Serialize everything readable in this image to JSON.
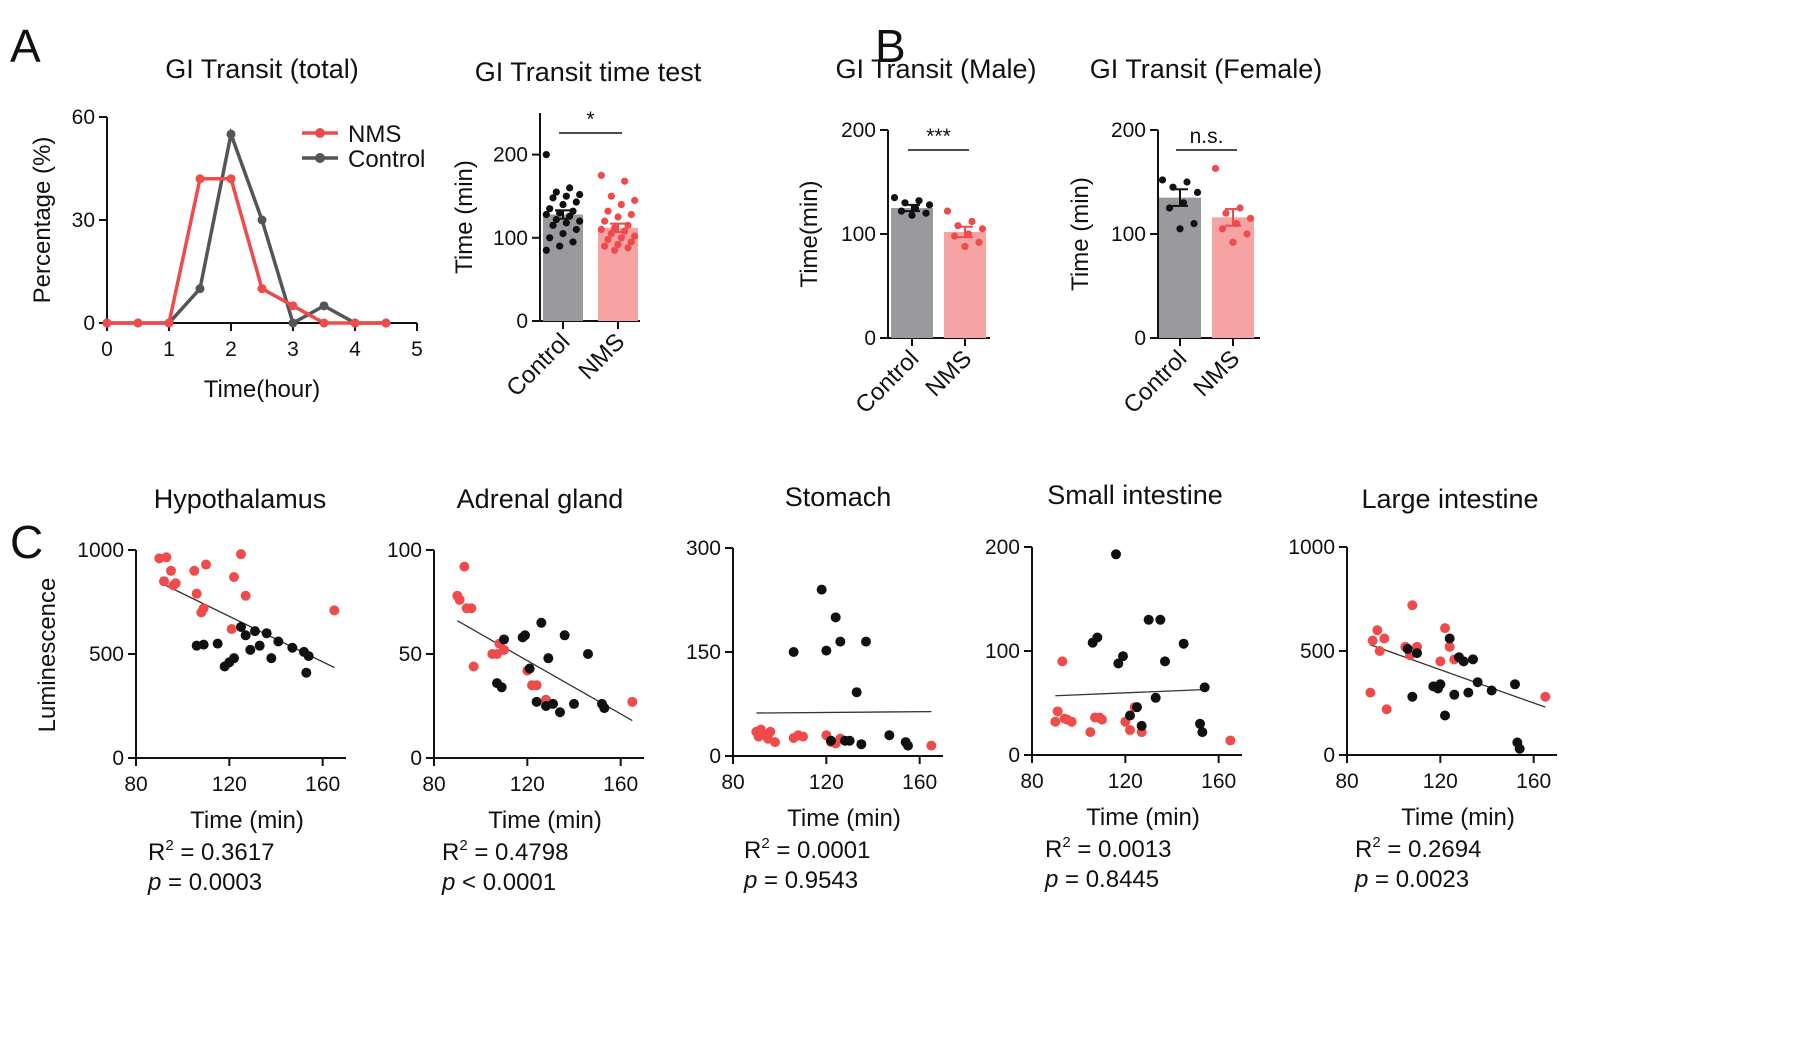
{
  "colors": {
    "nms": "#ef4b4b",
    "control": "#555555",
    "nms_bar": "#f5a3a3",
    "control_bar": "#9a9a9e",
    "dot_control": "#111111",
    "fit": "#333333"
  },
  "panel_letters": [
    "A",
    "B",
    "C"
  ],
  "chart_data": [
    {
      "id": "a-line",
      "type": "line",
      "title": "GI Transit  (total)",
      "xlabel": "Time(hour)",
      "ylabel": "Percentage (%)",
      "xlim": [
        0,
        5
      ],
      "ylim": [
        0,
        60
      ],
      "xticks": [
        "0",
        "1",
        "2",
        "3",
        "4",
        "5"
      ],
      "yticks": [
        "0",
        "30",
        "60"
      ],
      "xtick_values": [
        0,
        1,
        2,
        3,
        4,
        5
      ],
      "ytick_values": [
        0,
        30,
        60
      ],
      "legend": [
        "NMS",
        "Control"
      ],
      "legend_position": "top-right",
      "series": [
        {
          "name": "NMS",
          "x": [
            0,
            0.5,
            1,
            1.5,
            2,
            2.5,
            3,
            3.5,
            4,
            4.5
          ],
          "y": [
            0,
            0,
            0,
            42,
            42,
            10,
            5,
            0,
            0,
            0
          ]
        },
        {
          "name": "Control",
          "x": [
            0,
            0.5,
            1,
            1.5,
            2,
            2.5,
            3,
            3.5,
            4,
            4.5
          ],
          "y": [
            0,
            0,
            0,
            10,
            55,
            30,
            0,
            5,
            0,
            0
          ]
        }
      ]
    },
    {
      "id": "a-bar",
      "type": "bar",
      "title": "GI Transit time test",
      "ylabel": "Time (min)",
      "ylim": [
        0,
        250
      ],
      "yticks": [
        "0",
        "100",
        "200"
      ],
      "ytick_values": [
        0,
        100,
        200
      ],
      "categories": [
        "Control",
        "NMS"
      ],
      "values": [
        128,
        112
      ],
      "sem": [
        5,
        5
      ],
      "significance": "*",
      "points": [
        [
          200,
          160,
          155,
          152,
          150,
          148,
          143,
          140,
          135,
          132,
          130,
          128,
          126,
          122,
          120,
          118,
          115,
          110,
          105,
          100,
          95,
          90,
          85
        ],
        [
          175,
          168,
          150,
          145,
          140,
          132,
          128,
          125,
          120,
          115,
          112,
          110,
          108,
          105,
          102,
          100,
          98,
          95,
          92,
          90,
          88,
          85
        ]
      ]
    },
    {
      "id": "b-male",
      "type": "bar",
      "title": "GI Transit (Male)",
      "ylabel": "Time(min)",
      "ylim": [
        0,
        200
      ],
      "yticks": [
        "0",
        "100",
        "200"
      ],
      "ytick_values": [
        0,
        100,
        200
      ],
      "categories": [
        "Control",
        "NMS"
      ],
      "values": [
        125,
        102
      ],
      "sem": [
        3,
        5
      ],
      "significance": "***",
      "points": [
        [
          135,
          132,
          130,
          128,
          125,
          122,
          120,
          118
        ],
        [
          122,
          112,
          108,
          105,
          100,
          98,
          92,
          88
        ]
      ]
    },
    {
      "id": "b-female",
      "type": "bar",
      "title": "GI Transit (Female)",
      "ylabel": "Time (min)",
      "ylim": [
        0,
        200
      ],
      "yticks": [
        "0",
        "100",
        "200"
      ],
      "ytick_values": [
        0,
        100,
        200
      ],
      "categories": [
        "Control",
        "NMS"
      ],
      "values": [
        135,
        116
      ],
      "sem": [
        8,
        8
      ],
      "significance": "n.s.",
      "points": [
        [
          152,
          150,
          145,
          140,
          130,
          125,
          110,
          105
        ],
        [
          163,
          125,
          120,
          115,
          110,
          105,
          100,
          92
        ]
      ]
    },
    {
      "id": "c-hypothalamus",
      "type": "scatter",
      "title": "Hypothalamus",
      "xlabel": "Time (min)",
      "ylabel": "Luminescence",
      "xlim": [
        80,
        170
      ],
      "ylim": [
        0,
        1000
      ],
      "xticks": [
        "80",
        "120",
        "160"
      ],
      "yticks": [
        "0",
        "500",
        "1000"
      ],
      "xtick_values": [
        80,
        120,
        160
      ],
      "ytick_values": [
        0,
        500,
        1000
      ],
      "fit": [
        [
          90,
          845
        ],
        [
          165,
          435
        ]
      ],
      "r2_label": "R",
      "r2_exp": "2",
      "r2_value": " = 0.3617",
      "p_label": "p",
      "p_value": " = 0.0003",
      "series": [
        {
          "name": "NMS",
          "points": [
            [
              90,
              960
            ],
            [
              93,
              965
            ],
            [
              92,
              850
            ],
            [
              95,
              900
            ],
            [
              96,
              830
            ],
            [
              97,
              840
            ],
            [
              105,
              900
            ],
            [
              106,
              790
            ],
            [
              108,
              700
            ],
            [
              109,
              720
            ],
            [
              110,
              930
            ],
            [
              122,
              870
            ],
            [
              125,
              980
            ],
            [
              127,
              780
            ],
            [
              121,
              620
            ],
            [
              165,
              710
            ]
          ]
        },
        {
          "name": "Control",
          "points": [
            [
              106,
              540
            ],
            [
              109,
              545
            ],
            [
              115,
              550
            ],
            [
              118,
              440
            ],
            [
              120,
              460
            ],
            [
              122,
              480
            ],
            [
              125,
              630
            ],
            [
              127,
              590
            ],
            [
              129,
              520
            ],
            [
              131,
              610
            ],
            [
              133,
              540
            ],
            [
              136,
              600
            ],
            [
              138,
              480
            ],
            [
              141,
              560
            ],
            [
              147,
              530
            ],
            [
              152,
              510
            ],
            [
              153,
              410
            ],
            [
              154,
              490
            ]
          ]
        }
      ]
    },
    {
      "id": "c-adrenal",
      "type": "scatter",
      "title": "Adrenal gland",
      "xlabel": "Time (min)",
      "ylabel": "",
      "xlim": [
        80,
        170
      ],
      "ylim": [
        0,
        100
      ],
      "xticks": [
        "80",
        "120",
        "160"
      ],
      "yticks": [
        "0",
        "50",
        "100"
      ],
      "xtick_values": [
        80,
        120,
        160
      ],
      "ytick_values": [
        0,
        50,
        100
      ],
      "fit": [
        [
          90,
          66
        ],
        [
          165,
          18
        ]
      ],
      "r2_label": "R",
      "r2_exp": "2",
      "r2_value": " = 0.4798",
      "p_label": "p",
      "p_value": " < 0.0001",
      "series": [
        {
          "name": "NMS",
          "points": [
            [
              90,
              78
            ],
            [
              91,
              76
            ],
            [
              93,
              92
            ],
            [
              94,
              72
            ],
            [
              96,
              72
            ],
            [
              97,
              44
            ],
            [
              105,
              50
            ],
            [
              107,
              50
            ],
            [
              108,
              55
            ],
            [
              110,
              52
            ],
            [
              120,
              42
            ],
            [
              122,
              35
            ],
            [
              124,
              35
            ],
            [
              128,
              28
            ],
            [
              165,
              27
            ]
          ]
        },
        {
          "name": "Control",
          "points": [
            [
              107,
              36
            ],
            [
              109,
              34
            ],
            [
              110,
              57
            ],
            [
              118,
              58
            ],
            [
              119,
              59
            ],
            [
              121,
              43
            ],
            [
              124,
              27
            ],
            [
              126,
              65
            ],
            [
              128,
              25
            ],
            [
              129,
              48
            ],
            [
              131,
              26
            ],
            [
              134,
              22
            ],
            [
              136,
              59
            ],
            [
              140,
              26
            ],
            [
              146,
              50
            ],
            [
              152,
              26
            ],
            [
              153,
              24
            ]
          ]
        }
      ]
    },
    {
      "id": "c-stomach",
      "type": "scatter",
      "title": "Stomach",
      "xlabel": "Time (min)",
      "ylabel": "",
      "xlim": [
        80,
        170
      ],
      "ylim": [
        0,
        300
      ],
      "xticks": [
        "80",
        "120",
        "160"
      ],
      "yticks": [
        "0",
        "150",
        "300"
      ],
      "xtick_values": [
        80,
        120,
        160
      ],
      "ytick_values": [
        0,
        150,
        300
      ],
      "fit": [
        [
          90,
          62
        ],
        [
          165,
          64
        ]
      ],
      "r2_label": "R",
      "r2_exp": "2",
      "r2_value": " = 0.0001",
      "p_label": "p",
      "p_value": " = 0.9543",
      "series": [
        {
          "name": "NMS",
          "points": [
            [
              90,
              35
            ],
            [
              91,
              28
            ],
            [
              92,
              38
            ],
            [
              94,
              30
            ],
            [
              95,
              25
            ],
            [
              96,
              35
            ],
            [
              98,
              20
            ],
            [
              106,
              26
            ],
            [
              108,
              30
            ],
            [
              110,
              28
            ],
            [
              120,
              30
            ],
            [
              122,
              20
            ],
            [
              124,
              18
            ],
            [
              126,
              25
            ],
            [
              165,
              15
            ]
          ]
        },
        {
          "name": "Control",
          "points": [
            [
              106,
              150
            ],
            [
              118,
              240
            ],
            [
              120,
              152
            ],
            [
              122,
              22
            ],
            [
              124,
              200
            ],
            [
              126,
              165
            ],
            [
              128,
              22
            ],
            [
              130,
              22
            ],
            [
              133,
              92
            ],
            [
              135,
              17
            ],
            [
              137,
              165
            ],
            [
              147,
              30
            ],
            [
              154,
              20
            ],
            [
              155,
              15
            ]
          ]
        }
      ]
    },
    {
      "id": "c-small-intestine",
      "type": "scatter",
      "title": "Small intestine",
      "xlabel": "Time (min)",
      "ylabel": "",
      "xlim": [
        80,
        170
      ],
      "ylim": [
        0,
        200
      ],
      "xticks": [
        "80",
        "120",
        "160"
      ],
      "yticks": [
        "0",
        "100",
        "200"
      ],
      "xtick_values": [
        80,
        120,
        160
      ],
      "ytick_values": [
        0,
        100,
        200
      ],
      "fit": [
        [
          90,
          57
        ],
        [
          155,
          63
        ]
      ],
      "r2_label": "R",
      "r2_exp": "2",
      "r2_value": " = 0.0013",
      "p_label": "p",
      "p_value": " = 0.8445",
      "series": [
        {
          "name": "NMS",
          "points": [
            [
              90,
              32
            ],
            [
              91,
              42
            ],
            [
              93,
              90
            ],
            [
              94,
              35
            ],
            [
              95,
              34
            ],
            [
              97,
              32
            ],
            [
              105,
              22
            ],
            [
              107,
              36
            ],
            [
              109,
              36
            ],
            [
              110,
              34
            ],
            [
              120,
              32
            ],
            [
              122,
              24
            ],
            [
              124,
              46
            ],
            [
              127,
              22
            ],
            [
              165,
              14
            ]
          ]
        },
        {
          "name": "Control",
          "points": [
            [
              106,
              108
            ],
            [
              108,
              113
            ],
            [
              116,
              193
            ],
            [
              117,
              88
            ],
            [
              119,
              95
            ],
            [
              122,
              38
            ],
            [
              125,
              46
            ],
            [
              127,
              28
            ],
            [
              130,
              130
            ],
            [
              133,
              55
            ],
            [
              135,
              130
            ],
            [
              137,
              90
            ],
            [
              145,
              107
            ],
            [
              152,
              30
            ],
            [
              154,
              65
            ],
            [
              153,
              22
            ]
          ]
        }
      ]
    },
    {
      "id": "c-large-intestine",
      "type": "scatter",
      "title": "Large intestine",
      "xlabel": "Time (min)",
      "ylabel": "",
      "xlim": [
        80,
        170
      ],
      "ylim": [
        0,
        1000
      ],
      "xticks": [
        "80",
        "120",
        "160"
      ],
      "yticks": [
        "0",
        "500",
        "1000"
      ],
      "xtick_values": [
        80,
        120,
        160
      ],
      "ytick_values": [
        0,
        500,
        1000
      ],
      "fit": [
        [
          90,
          530
        ],
        [
          165,
          230
        ]
      ],
      "r2_label": "R",
      "r2_exp": "2",
      "r2_value": " = 0.2694",
      "p_label": "p",
      "p_value": " = 0.0023",
      "series": [
        {
          "name": "NMS",
          "points": [
            [
              90,
              300
            ],
            [
              91,
              550
            ],
            [
              93,
              600
            ],
            [
              94,
              500
            ],
            [
              96,
              560
            ],
            [
              97,
              220
            ],
            [
              105,
              520
            ],
            [
              107,
              480
            ],
            [
              108,
              720
            ],
            [
              110,
              520
            ],
            [
              120,
              450
            ],
            [
              122,
              610
            ],
            [
              124,
              520
            ],
            [
              126,
              460
            ],
            [
              165,
              280
            ]
          ]
        },
        {
          "name": "Control",
          "points": [
            [
              106,
              510
            ],
            [
              108,
              280
            ],
            [
              110,
              490
            ],
            [
              117,
              330
            ],
            [
              119,
              320
            ],
            [
              120,
              340
            ],
            [
              122,
              190
            ],
            [
              124,
              560
            ],
            [
              126,
              290
            ],
            [
              128,
              470
            ],
            [
              130,
              450
            ],
            [
              132,
              300
            ],
            [
              134,
              460
            ],
            [
              136,
              350
            ],
            [
              142,
              310
            ],
            [
              152,
              340
            ],
            [
              153,
              60
            ],
            [
              154,
              30
            ]
          ]
        }
      ]
    }
  ]
}
